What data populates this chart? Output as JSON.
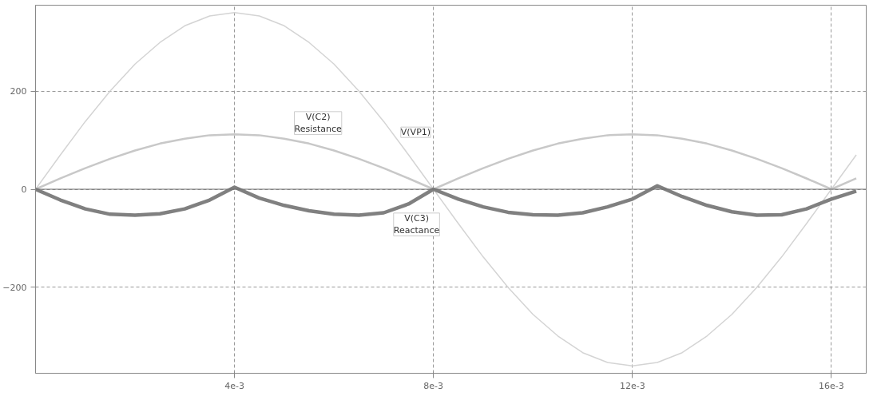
{
  "chart_data": {
    "type": "line",
    "x": [
      0,
      0.0005,
      0.001,
      0.0015,
      0.002,
      0.0025,
      0.003,
      0.0035,
      0.004,
      0.0045,
      0.005,
      0.0055,
      0.006,
      0.0065,
      0.007,
      0.0075,
      0.008,
      0.0085,
      0.009,
      0.0095,
      0.01,
      0.0105,
      0.011,
      0.0115,
      0.012,
      0.0125,
      0.013,
      0.0135,
      0.014,
      0.0145,
      0.015,
      0.0155,
      0.016,
      0.0165
    ],
    "series": [
      {
        "name": "V(VP1)",
        "color": "#d4d4d4",
        "values": [
          0,
          70,
          138,
          200,
          255,
          299,
          333,
          353,
          360,
          353,
          333,
          299,
          255,
          200,
          138,
          70,
          0,
          -70,
          -138,
          -200,
          -255,
          -299,
          -333,
          -353,
          -360,
          -353,
          -333,
          -299,
          -255,
          -200,
          -138,
          -70,
          0,
          70
        ]
      },
      {
        "name": "V(C2)\nResistance",
        "color": "#c8c8c8",
        "values": [
          0,
          22,
          43,
          62,
          79,
          93,
          103,
          110,
          112,
          110,
          103,
          93,
          79,
          62,
          43,
          22,
          0,
          22,
          43,
          62,
          79,
          93,
          103,
          110,
          112,
          110,
          103,
          93,
          79,
          62,
          43,
          22,
          0,
          22
        ]
      },
      {
        "name": "V(C3)\nReactance",
        "color": "#808080",
        "values": [
          0,
          -22,
          -40,
          -51,
          -53,
          -50,
          -40,
          -22,
          4,
          -18,
          -33,
          -44,
          -51,
          -53,
          -48,
          -30,
          0,
          -20,
          -36,
          -47,
          -52,
          -53,
          -48,
          -36,
          -20,
          7,
          -15,
          -33,
          -46,
          -53,
          -52,
          -40,
          -20,
          -4
        ]
      }
    ],
    "xlim": [
      0,
      0.0167
    ],
    "ylim": [
      -375,
      375
    ],
    "xticks": [
      {
        "value": 0.004,
        "label": "4e-3"
      },
      {
        "value": 0.008,
        "label": "8e-3"
      },
      {
        "value": 0.012,
        "label": "12e-3"
      },
      {
        "value": 0.016,
        "label": "16e-3"
      }
    ],
    "yticks": [
      -200,
      0,
      200
    ],
    "ref_lines": [
      {
        "axis": "y",
        "value": 0,
        "color": "#707070"
      }
    ],
    "grid": true,
    "line_style": "solid",
    "marker": "none"
  }
}
